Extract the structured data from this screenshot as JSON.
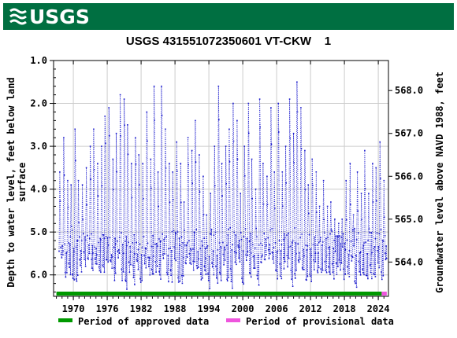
{
  "header": {
    "logo_text": "USGS",
    "logo_icon": "usgs-wave-icon",
    "brand_color": "#006f41"
  },
  "chart_data": {
    "type": "line",
    "title": "USGS 431551072350601 VT-CKW    1",
    "ylabel_left": "Depth to water level, feet below land surface",
    "ylabel_left_lines": [
      "Depth to water level, feet below land",
      "surface"
    ],
    "ylabel_right": "Groundwater level above NAVD 1988, feet",
    "x_tick_labels": [
      "1970",
      "1976",
      "1982",
      "1988",
      "1994",
      "2000",
      "2006",
      "2012",
      "2018",
      "2024"
    ],
    "x_ticks": [
      1970,
      1976,
      1982,
      1988,
      1994,
      2000,
      2006,
      2012,
      2018,
      2024
    ],
    "xlim": [
      1966.5,
      2025.8
    ],
    "y_left_tick_labels": [
      "1.0",
      "2.0",
      "3.0",
      "4.0",
      "5.0",
      "6.0"
    ],
    "y_left_ticks": [
      1.0,
      2.0,
      3.0,
      4.0,
      5.0,
      6.0
    ],
    "ylim_left": [
      1.0,
      6.5
    ],
    "y_right_tick_labels": [
      "568.0",
      "567.0",
      "566.0",
      "565.0",
      "564.0"
    ],
    "y_right_ticks": [
      568.0,
      567.0,
      566.0,
      565.0,
      564.0
    ],
    "datum_offset": 569.7,
    "inverted": true,
    "grid": true,
    "series_color": "#1a1acc",
    "series": [
      {
        "name": "Depth to water level",
        "peaks": [
          [
            1967.6,
            3.6
          ],
          [
            1968.3,
            2.8
          ],
          [
            1969.0,
            3.8
          ],
          [
            1969.6,
            3.9
          ],
          [
            1970.3,
            2.6
          ],
          [
            1970.9,
            3.8
          ],
          [
            1971.6,
            3.9
          ],
          [
            1972.3,
            3.5
          ],
          [
            1973.0,
            3.0
          ],
          [
            1973.6,
            2.6
          ],
          [
            1974.3,
            3.4
          ],
          [
            1975.0,
            3.0
          ],
          [
            1975.6,
            2.3
          ],
          [
            1976.3,
            2.1
          ],
          [
            1977.0,
            3.3
          ],
          [
            1977.6,
            2.7
          ],
          [
            1978.3,
            1.8
          ],
          [
            1979.0,
            1.9
          ],
          [
            1979.6,
            2.5
          ],
          [
            1980.3,
            3.4
          ],
          [
            1981.0,
            2.8
          ],
          [
            1981.6,
            3.2
          ],
          [
            1982.3,
            3.4
          ],
          [
            1983.0,
            2.2
          ],
          [
            1983.7,
            3.3
          ],
          [
            1984.3,
            1.6
          ],
          [
            1985.0,
            3.6
          ],
          [
            1985.6,
            1.6
          ],
          [
            1986.3,
            2.6
          ],
          [
            1987.0,
            3.4
          ],
          [
            1987.6,
            3.6
          ],
          [
            1988.3,
            2.9
          ],
          [
            1989.0,
            3.4
          ],
          [
            1989.6,
            4.3
          ],
          [
            1990.3,
            2.8
          ],
          [
            1991.0,
            3.1
          ],
          [
            1991.6,
            2.4
          ],
          [
            1992.3,
            3.2
          ],
          [
            1993.0,
            3.7
          ],
          [
            1993.6,
            4.6
          ],
          [
            1994.3,
            4.1
          ],
          [
            1995.0,
            3.0
          ],
          [
            1995.7,
            1.6
          ],
          [
            1996.3,
            3.4
          ],
          [
            1997.0,
            3.0
          ],
          [
            1997.6,
            2.6
          ],
          [
            1998.3,
            2.0
          ],
          [
            1999.0,
            2.4
          ],
          [
            1999.6,
            4.1
          ],
          [
            2000.3,
            3.0
          ],
          [
            2001.0,
            2.0
          ],
          [
            2001.6,
            3.3
          ],
          [
            2002.3,
            4.0
          ],
          [
            2003.0,
            1.9
          ],
          [
            2003.6,
            3.4
          ],
          [
            2004.3,
            3.7
          ],
          [
            2005.0,
            2.1
          ],
          [
            2005.6,
            3.6
          ],
          [
            2006.3,
            2.0
          ],
          [
            2007.0,
            3.6
          ],
          [
            2007.6,
            3.0
          ],
          [
            2008.3,
            1.9
          ],
          [
            2009.0,
            2.7
          ],
          [
            2009.6,
            1.5
          ],
          [
            2010.3,
            2.1
          ],
          [
            2011.0,
            3.1
          ],
          [
            2011.6,
            3.9
          ],
          [
            2012.3,
            3.3
          ],
          [
            2013.0,
            3.6
          ],
          [
            2013.6,
            4.4
          ],
          [
            2014.3,
            3.8
          ],
          [
            2015.0,
            4.4
          ],
          [
            2015.6,
            4.3
          ],
          [
            2016.3,
            4.7
          ],
          [
            2017.0,
            4.8
          ],
          [
            2017.6,
            4.7
          ],
          [
            2018.3,
            3.8
          ],
          [
            2019.0,
            3.4
          ],
          [
            2019.6,
            4.6
          ],
          [
            2020.3,
            3.6
          ],
          [
            2021.0,
            4.1
          ],
          [
            2021.6,
            3.1
          ],
          [
            2022.3,
            4.1
          ],
          [
            2023.0,
            3.4
          ],
          [
            2023.6,
            3.5
          ],
          [
            2024.3,
            2.9
          ],
          [
            2025.0,
            3.8
          ]
        ]
      }
    ],
    "legend": [
      {
        "label": "Period of approved data",
        "color": "#009900"
      },
      {
        "label": "Period of provisional data",
        "color": "#ee55dd"
      }
    ],
    "periods": [
      {
        "type": "approved",
        "x": [
          1967.0,
          2024.6
        ],
        "color": "#009900"
      },
      {
        "type": "provisional",
        "x": [
          2024.6,
          2025.5
        ],
        "color": "#ee55dd"
      }
    ],
    "legend_placement": "bottom"
  }
}
